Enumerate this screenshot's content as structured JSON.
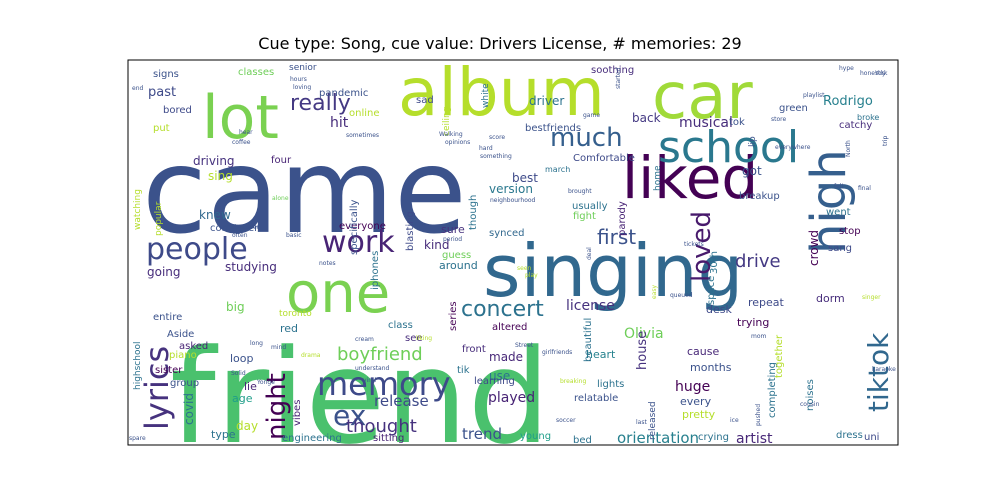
{
  "chart_data": {
    "type": "wordcloud",
    "title": "Cue type: Song, cue value: Drivers License, # memories: 29",
    "words": [
      {
        "text": "friend",
        "color": "#4ac16d",
        "weight": 130
      },
      {
        "text": "came",
        "color": "#3b528b",
        "weight": 118
      },
      {
        "text": "singing",
        "color": "#31688e",
        "weight": 72
      },
      {
        "text": "album",
        "color": "#b5de2b",
        "weight": 66
      },
      {
        "text": "car",
        "color": "#a0da39",
        "weight": 64
      },
      {
        "text": "lot",
        "color": "#7ad151",
        "weight": 60
      },
      {
        "text": "liked",
        "color": "#440154",
        "weight": 58
      },
      {
        "text": "one",
        "color": "#7ad151",
        "weight": 56
      },
      {
        "text": "high",
        "color": "#355f8d",
        "weight": 48
      },
      {
        "text": "school",
        "color": "#2a788e",
        "weight": 44
      },
      {
        "text": "memory",
        "color": "#3e4a89",
        "weight": 32
      },
      {
        "text": "lyrics",
        "color": "#46327e",
        "weight": 32
      },
      {
        "text": "people",
        "color": "#3e4a89",
        "weight": 30
      },
      {
        "text": "work",
        "color": "#482475",
        "weight": 30
      },
      {
        "text": "tiktok",
        "color": "#31688e",
        "weight": 28
      },
      {
        "text": "night",
        "color": "#440154",
        "weight": 26
      },
      {
        "text": "ex",
        "color": "#3b528b",
        "weight": 28
      },
      {
        "text": "loved",
        "color": "#481a6c",
        "weight": 26
      },
      {
        "text": "much",
        "color": "#355f8d",
        "weight": 26
      },
      {
        "text": "really",
        "color": "#443983",
        "weight": 22
      },
      {
        "text": "concert",
        "color": "#2c728e",
        "weight": 22
      },
      {
        "text": "first",
        "color": "#3b528b",
        "weight": 20
      },
      {
        "text": "boyfriend",
        "color": "#6ece58",
        "weight": 18
      },
      {
        "text": "thought",
        "color": "#46327e",
        "weight": 18
      },
      {
        "text": "drive",
        "color": "#443983",
        "weight": 18
      },
      {
        "text": "orientation",
        "color": "#27808e",
        "weight": 15
      },
      {
        "text": "trend",
        "color": "#3b528b",
        "weight": 15
      },
      {
        "text": "release",
        "color": "#3e4a89",
        "weight": 15
      },
      {
        "text": "played",
        "color": "#482475",
        "weight": 14
      },
      {
        "text": "license",
        "color": "#46327e",
        "weight": 14
      },
      {
        "text": "Olivia",
        "color": "#6ece58",
        "weight": 14
      },
      {
        "text": "artist",
        "color": "#482878",
        "weight": 14
      },
      {
        "text": "huge",
        "color": "#440154",
        "weight": 14
      },
      {
        "text": "musical",
        "color": "#472d7b",
        "weight": 14
      },
      {
        "text": "Rodrigo",
        "color": "#27808e",
        "weight": 13
      },
      {
        "text": "hit",
        "color": "#472d7b",
        "weight": 14
      },
      {
        "text": "past",
        "color": "#3e4a89",
        "weight": 13
      },
      {
        "text": "house",
        "color": "#46327e",
        "weight": 13
      },
      {
        "text": "covid",
        "color": "#2c728e",
        "weight": 12
      },
      {
        "text": "day",
        "color": "#b5de2b",
        "weight": 12
      },
      {
        "text": "big",
        "color": "#6ece58",
        "weight": 12
      },
      {
        "text": "driving",
        "color": "#46327e",
        "weight": 12
      },
      {
        "text": "sing",
        "color": "#b5de2b",
        "weight": 12
      },
      {
        "text": "knew",
        "color": "#31688e",
        "weight": 12
      },
      {
        "text": "going",
        "color": "#472d7b",
        "weight": 12
      },
      {
        "text": "studying",
        "color": "#472d7b",
        "weight": 12
      },
      {
        "text": "made",
        "color": "#482878",
        "weight": 12
      },
      {
        "text": "use",
        "color": "#2c728e",
        "weight": 12
      },
      {
        "text": "version",
        "color": "#2a788e",
        "weight": 12
      },
      {
        "text": "best",
        "color": "#3e4a89",
        "weight": 12
      },
      {
        "text": "back",
        "color": "#443983",
        "weight": 12
      },
      {
        "text": "got",
        "color": "#3b528b",
        "weight": 12
      },
      {
        "text": "crowd",
        "color": "#440154",
        "weight": 12
      },
      {
        "text": "driver",
        "color": "#2c728e",
        "weight": 12
      },
      {
        "text": "kind",
        "color": "#472d7b",
        "weight": 12
      },
      {
        "text": "lie",
        "color": "#482475",
        "weight": 11
      },
      {
        "text": "age",
        "color": "#1f9e89",
        "weight": 11
      },
      {
        "text": "type",
        "color": "#2c728e",
        "weight": 11
      },
      {
        "text": "loop",
        "color": "#3b528b",
        "weight": 11
      },
      {
        "text": "red",
        "color": "#2c728e",
        "weight": 11
      },
      {
        "text": "heart",
        "color": "#26828e",
        "weight": 11
      },
      {
        "text": "months",
        "color": "#3b528b",
        "weight": 11
      },
      {
        "text": "cause",
        "color": "#482878",
        "weight": 11
      },
      {
        "text": "every",
        "color": "#3b528b",
        "weight": 11
      },
      {
        "text": "pretty",
        "color": "#b5de2b",
        "weight": 11
      },
      {
        "text": "trying",
        "color": "#440154",
        "weight": 11
      },
      {
        "text": "repeat",
        "color": "#3e4a89",
        "weight": 11
      },
      {
        "text": "dorm",
        "color": "#472d7b",
        "weight": 11
      },
      {
        "text": "desk",
        "color": "#3e4a89",
        "weight": 11
      },
      {
        "text": "sure",
        "color": "#46327e",
        "weight": 11
      },
      {
        "text": "around",
        "color": "#2c728e",
        "weight": 11
      },
      {
        "text": "class",
        "color": "#2c728e",
        "weight": 10
      },
      {
        "text": "see",
        "color": "#472d7b",
        "weight": 10
      },
      {
        "text": "sister",
        "color": "#440154",
        "weight": 10
      },
      {
        "text": "group",
        "color": "#3b528b",
        "weight": 10
      },
      {
        "text": "asked",
        "color": "#482475",
        "weight": 10
      },
      {
        "text": "bored",
        "color": "#3e4a89",
        "weight": 10
      },
      {
        "text": "four",
        "color": "#482475",
        "weight": 10
      },
      {
        "text": "everyone",
        "color": "#440154",
        "weight": 10
      },
      {
        "text": "iphones",
        "color": "#2c728e",
        "weight": 10
      },
      {
        "text": "synced",
        "color": "#31688e",
        "weight": 10
      },
      {
        "text": "guess",
        "color": "#6ece58",
        "weight": 10
      },
      {
        "text": "altered",
        "color": "#440154",
        "weight": 10
      },
      {
        "text": "front",
        "color": "#472d7b",
        "weight": 10
      },
      {
        "text": "learning",
        "color": "#3e4a89",
        "weight": 10
      },
      {
        "text": "young",
        "color": "#1f9e89",
        "weight": 10
      },
      {
        "text": "bed",
        "color": "#2c728e",
        "weight": 10
      },
      {
        "text": "crying",
        "color": "#2c728e",
        "weight": 10
      },
      {
        "text": "sitting",
        "color": "#482475",
        "weight": 10
      },
      {
        "text": "engineering",
        "color": "#2c728e",
        "weight": 10
      },
      {
        "text": "lights",
        "color": "#2c728e",
        "weight": 10
      },
      {
        "text": "relatable",
        "color": "#3b528b",
        "weight": 10
      },
      {
        "text": "breakup",
        "color": "#3b528b",
        "weight": 10
      },
      {
        "text": "catchy",
        "color": "#472d7b",
        "weight": 10
      },
      {
        "text": "green",
        "color": "#3b528b",
        "weight": 10
      },
      {
        "text": "tok",
        "color": "#3b528b",
        "weight": 10
      },
      {
        "text": "stop",
        "color": "#440154",
        "weight": 10
      },
      {
        "text": "went",
        "color": "#2c728e",
        "weight": 10
      },
      {
        "text": "sang",
        "color": "#3e4a89",
        "weight": 10
      },
      {
        "text": "fight",
        "color": "#6ece58",
        "weight": 10
      },
      {
        "text": "usually",
        "color": "#2c728e",
        "weight": 10
      },
      {
        "text": "Comfortable",
        "color": "#3e4a89",
        "weight": 10
      },
      {
        "text": "bestfriends",
        "color": "#3b528b",
        "weight": 10
      },
      {
        "text": "classes",
        "color": "#6ece58",
        "weight": 10
      },
      {
        "text": "pandemic",
        "color": "#3b528b",
        "weight": 10
      },
      {
        "text": "signs",
        "color": "#3b528b",
        "weight": 10
      },
      {
        "text": "sad",
        "color": "#3e4a89",
        "weight": 10
      },
      {
        "text": "soothing",
        "color": "#472d7b",
        "weight": 10
      },
      {
        "text": "online",
        "color": "#b5de2b",
        "weight": 10
      },
      {
        "text": "put",
        "color": "#b5de2b",
        "weight": 10
      },
      {
        "text": "computer",
        "color": "#3b528b",
        "weight": 10
      },
      {
        "text": "noises",
        "color": "#2c728e",
        "weight": 10
      },
      {
        "text": "completing",
        "color": "#2c728e",
        "weight": 10
      },
      {
        "text": "together",
        "color": "#b5de2b",
        "weight": 10
      },
      {
        "text": "vibes",
        "color": "#482475",
        "weight": 10
      },
      {
        "text": "tik",
        "color": "#2c728e",
        "weight": 10
      },
      {
        "text": "Aside",
        "color": "#3b528b",
        "weight": 10
      },
      {
        "text": "entire",
        "color": "#3b528b",
        "weight": 10
      },
      {
        "text": "piano",
        "color": "#b5de2b",
        "weight": 10
      },
      {
        "text": "dress",
        "color": "#2c728e",
        "weight": 10
      },
      {
        "text": "uni",
        "color": "#3e4a89",
        "weight": 10
      },
      {
        "text": "specifically",
        "color": "#3b528b",
        "weight": 10
      },
      {
        "text": "blasting",
        "color": "#3e4a89",
        "weight": 10
      },
      {
        "text": "series",
        "color": "#440154",
        "weight": 10
      },
      {
        "text": "parody",
        "color": "#482475",
        "weight": 10
      },
      {
        "text": "space",
        "color": "#2c728e",
        "weight": 10
      },
      {
        "text": "30th",
        "color": "#2c728e",
        "weight": 10
      },
      {
        "text": "though",
        "color": "#2c728e",
        "weight": 10
      },
      {
        "text": "beautiful",
        "color": "#2c728e",
        "weight": 10
      },
      {
        "text": "released",
        "color": "#3b528b",
        "weight": 9
      },
      {
        "text": "white",
        "color": "#2c728e",
        "weight": 9
      },
      {
        "text": "ceiling",
        "color": "#b5de2b",
        "weight": 9
      },
      {
        "text": "senior",
        "color": "#3b528b",
        "weight": 9
      },
      {
        "text": "lip",
        "color": "#3b528b",
        "weight": 9
      },
      {
        "text": "highschool",
        "color": "#2c728e",
        "weight": 9
      },
      {
        "text": "home",
        "color": "#2c728e",
        "weight": 9
      },
      {
        "text": "popular",
        "color": "#b5de2b",
        "weight": 9
      },
      {
        "text": "watching",
        "color": "#b5de2b",
        "weight": 9
      },
      {
        "text": "march",
        "color": "#2c728e",
        "weight": 8
      },
      {
        "text": "toronto",
        "color": "#b5de2b",
        "weight": 9
      },
      {
        "text": "broke",
        "color": "#2c728e",
        "weight": 8
      },
      {
        "text": "hype",
        "color": "#3b528b",
        "weight": 6
      },
      {
        "text": "honestly",
        "color": "#3b528b",
        "weight": 6
      },
      {
        "text": "playlist",
        "color": "#3b528b",
        "weight": 6
      },
      {
        "text": "store",
        "color": "#3b528b",
        "weight": 6
      },
      {
        "text": "everywhere",
        "color": "#3b528b",
        "weight": 6
      },
      {
        "text": "hours",
        "color": "#3b528b",
        "weight": 6
      },
      {
        "text": "loving",
        "color": "#3b528b",
        "weight": 6
      },
      {
        "text": "sometimes",
        "color": "#3b528b",
        "weight": 6
      },
      {
        "text": "hear",
        "color": "#3b528b",
        "weight": 6
      },
      {
        "text": "coffee",
        "color": "#3b528b",
        "weight": 6
      },
      {
        "text": "opinions",
        "color": "#3b528b",
        "weight": 6
      },
      {
        "text": "Walking",
        "color": "#3b528b",
        "weight": 6
      },
      {
        "text": "score",
        "color": "#3b528b",
        "weight": 6
      },
      {
        "text": "game",
        "color": "#3b528b",
        "weight": 6
      },
      {
        "text": "end",
        "color": "#3b528b",
        "weight": 6
      },
      {
        "text": "started",
        "color": "#3b528b",
        "weight": 6
      },
      {
        "text": "hard",
        "color": "#3b528b",
        "weight": 6
      },
      {
        "text": "something",
        "color": "#3b528b",
        "weight": 6
      },
      {
        "text": "brought",
        "color": "#3b528b",
        "weight": 6
      },
      {
        "text": "neighbourhood",
        "color": "#3b528b",
        "weight": 6
      },
      {
        "text": "felt",
        "color": "#3b528b",
        "weight": 6
      },
      {
        "text": "final",
        "color": "#3b528b",
        "weight": 6
      },
      {
        "text": "North",
        "color": "#3b528b",
        "weight": 6
      },
      {
        "text": "York",
        "color": "#3b528b",
        "weight": 6
      },
      {
        "text": "trip",
        "color": "#3b528b",
        "weight": 6
      },
      {
        "text": "alone",
        "color": "#6ece58",
        "weight": 6
      },
      {
        "text": "discussed",
        "color": "#3b528b",
        "weight": 6
      },
      {
        "text": "often",
        "color": "#3b528b",
        "weight": 6
      },
      {
        "text": "basic",
        "color": "#3b528b",
        "weight": 6
      },
      {
        "text": "period",
        "color": "#3b528b",
        "weight": 6
      },
      {
        "text": "deal",
        "color": "#3b528b",
        "weight": 6
      },
      {
        "text": "tickets",
        "color": "#3b528b",
        "weight": 6
      },
      {
        "text": "seen",
        "color": "#b5de2b",
        "weight": 6
      },
      {
        "text": "play",
        "color": "#b5de2b",
        "weight": 6
      },
      {
        "text": "notes",
        "color": "#3b528b",
        "weight": 6
      },
      {
        "text": "queued",
        "color": "#3b528b",
        "weight": 6
      },
      {
        "text": "easy",
        "color": "#b5de2b",
        "weight": 6
      },
      {
        "text": "mind",
        "color": "#3b528b",
        "weight": 6
      },
      {
        "text": "cream",
        "color": "#3b528b",
        "weight": 6
      },
      {
        "text": "liking",
        "color": "#b5de2b",
        "weight": 6
      },
      {
        "text": "mom",
        "color": "#3b528b",
        "weight": 6
      },
      {
        "text": "long",
        "color": "#3b528b",
        "weight": 6
      },
      {
        "text": "drama",
        "color": "#b5de2b",
        "weight": 6
      },
      {
        "text": "Solid",
        "color": "#3b528b",
        "weight": 6
      },
      {
        "text": "Yonge",
        "color": "#3b528b",
        "weight": 6
      },
      {
        "text": "understand",
        "color": "#3b528b",
        "weight": 6
      },
      {
        "text": "viral",
        "color": "#3b528b",
        "weight": 6
      },
      {
        "text": "Street",
        "color": "#3b528b",
        "weight": 6
      },
      {
        "text": "girlfriends",
        "color": "#3b528b",
        "weight": 6
      },
      {
        "text": "breaking",
        "color": "#b5de2b",
        "weight": 6
      },
      {
        "text": "last",
        "color": "#3b528b",
        "weight": 6
      },
      {
        "text": "soccer",
        "color": "#3b528b",
        "weight": 6
      },
      {
        "text": "spare",
        "color": "#3b528b",
        "weight": 6
      },
      {
        "text": "ice",
        "color": "#3b528b",
        "weight": 6
      },
      {
        "text": "pushed",
        "color": "#3b528b",
        "weight": 6
      },
      {
        "text": "cousin",
        "color": "#3b528b",
        "weight": 6
      },
      {
        "text": "karaoke",
        "color": "#3b528b",
        "weight": 6
      },
      {
        "text": "singer",
        "color": "#b5de2b",
        "weight": 6
      }
    ]
  }
}
